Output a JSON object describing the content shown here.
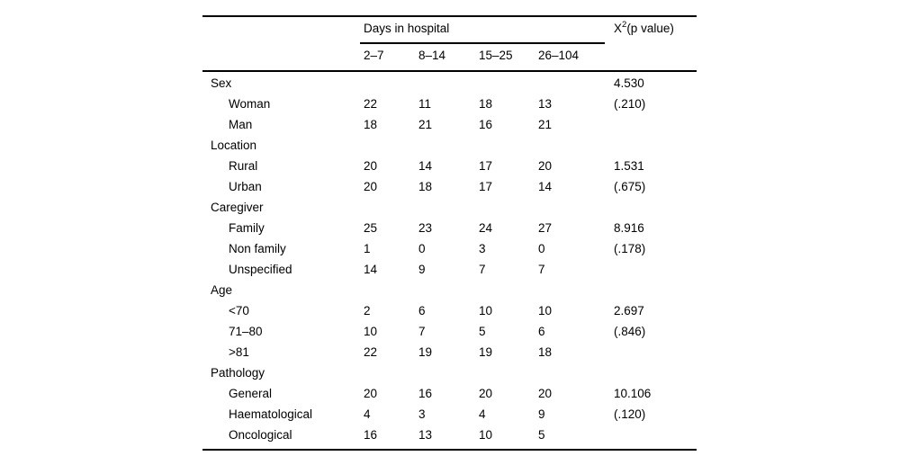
{
  "page": {
    "background": "#ffffff"
  },
  "colors": {
    "text": "#000000",
    "rules": "#000000",
    "background": "#ffffff"
  },
  "table": {
    "group_header": "Days in hospital",
    "chi_header": {
      "base": "X",
      "sup": "2",
      "rest": "(p value)"
    },
    "columns": [
      "2–7",
      "8–14",
      "15–25",
      "26–104"
    ],
    "rows": [
      {
        "type": "section",
        "label": "Sex",
        "values": [
          "",
          "",
          "",
          ""
        ],
        "chi": "4.530"
      },
      {
        "type": "sub",
        "label": "Woman",
        "values": [
          "22",
          "11",
          "18",
          "13"
        ],
        "chi": "(.210)"
      },
      {
        "type": "sub",
        "label": "Man",
        "values": [
          "18",
          "21",
          "16",
          "21"
        ],
        "chi": ""
      },
      {
        "type": "section",
        "label": "Location",
        "values": [
          "",
          "",
          "",
          ""
        ],
        "chi": ""
      },
      {
        "type": "sub",
        "label": "Rural",
        "values": [
          "20",
          "14",
          "17",
          "20"
        ],
        "chi": "1.531"
      },
      {
        "type": "sub",
        "label": "Urban",
        "values": [
          "20",
          "18",
          "17",
          "14"
        ],
        "chi": "(.675)"
      },
      {
        "type": "section",
        "label": "Caregiver",
        "values": [
          "",
          "",
          "",
          ""
        ],
        "chi": ""
      },
      {
        "type": "sub",
        "label": "Family",
        "values": [
          "25",
          "23",
          "24",
          "27"
        ],
        "chi": "8.916"
      },
      {
        "type": "sub",
        "label": "Non family",
        "values": [
          "1",
          "0",
          "3",
          "0"
        ],
        "chi": "(.178)"
      },
      {
        "type": "sub",
        "label": "Unspecified",
        "values": [
          "14",
          "9",
          "7",
          "7"
        ],
        "chi": ""
      },
      {
        "type": "section",
        "label": "Age",
        "values": [
          "",
          "",
          "",
          ""
        ],
        "chi": ""
      },
      {
        "type": "sub",
        "label": "<70",
        "values": [
          "2",
          "6",
          "10",
          "10"
        ],
        "chi": "2.697"
      },
      {
        "type": "sub",
        "label": "71–80",
        "values": [
          "10",
          "7",
          "5",
          "6"
        ],
        "chi": "(.846)"
      },
      {
        "type": "sub",
        "label": ">81",
        "values": [
          "22",
          "19",
          "19",
          "18"
        ],
        "chi": ""
      },
      {
        "type": "section",
        "label": "Pathology",
        "values": [
          "",
          "",
          "",
          ""
        ],
        "chi": ""
      },
      {
        "type": "sub",
        "label": "General",
        "values": [
          "20",
          "16",
          "20",
          "20"
        ],
        "chi": "10.106"
      },
      {
        "type": "sub",
        "label": "Haematological",
        "values": [
          "4",
          "3",
          "4",
          "9"
        ],
        "chi": "(.120)"
      },
      {
        "type": "sub",
        "label": "Oncological",
        "values": [
          "16",
          "13",
          "10",
          "5"
        ],
        "chi": ""
      }
    ]
  }
}
